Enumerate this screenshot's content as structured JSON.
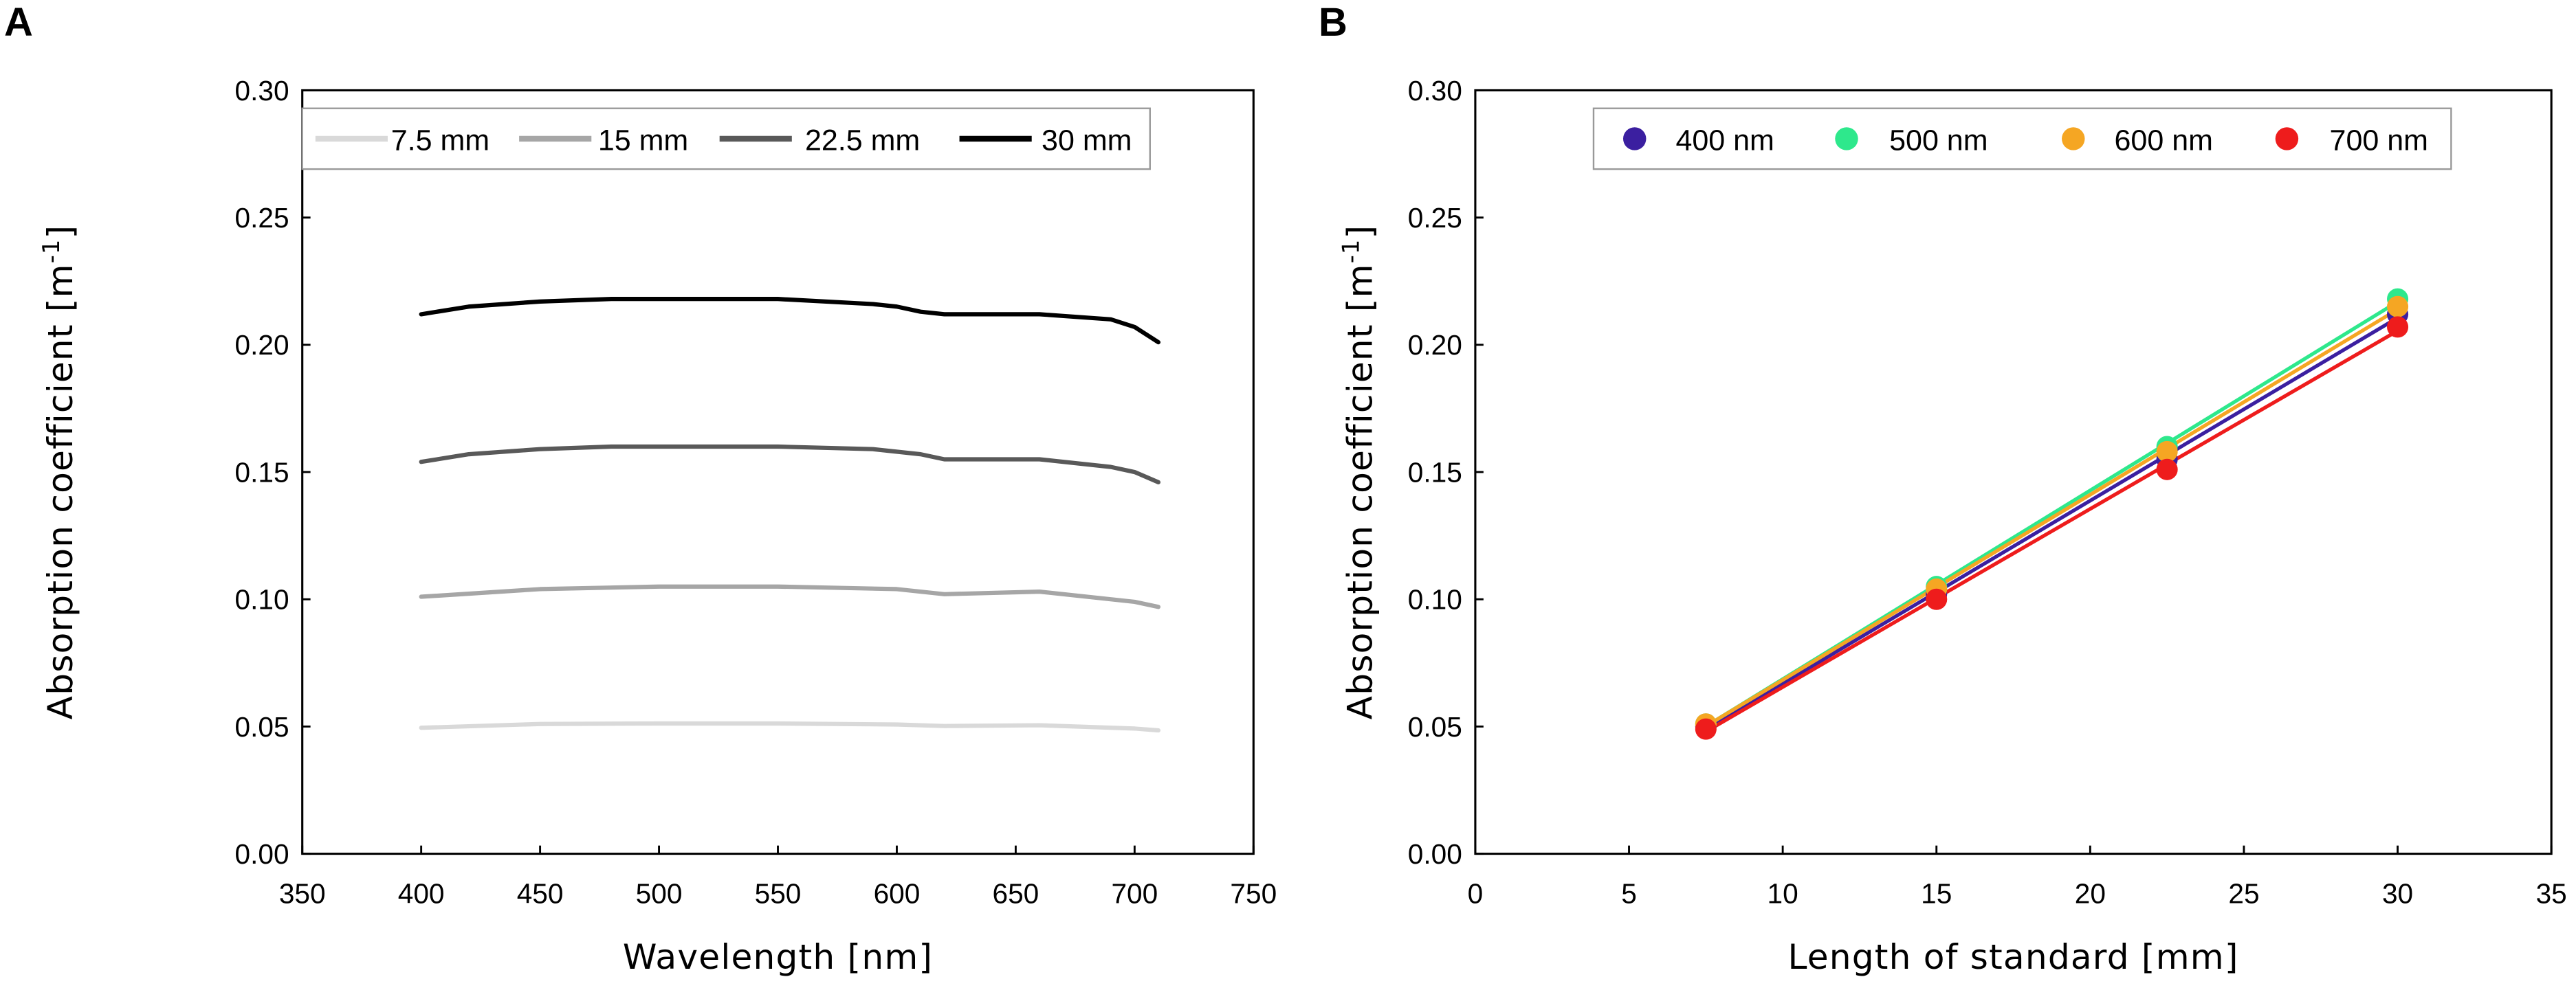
{
  "panels": {
    "a": {
      "label": "A"
    },
    "b": {
      "label": "B"
    }
  },
  "chart_data": [
    {
      "type": "line",
      "panel": "A",
      "title": "",
      "xlabel": "Wavelength [nm]",
      "ylabel": "Absorption coefficient  [m",
      "ylabel_superscript": "-1",
      "ylabel_close": "]",
      "xlim": [
        350,
        750
      ],
      "ylim": [
        0.0,
        0.3
      ],
      "xticks": [
        350,
        400,
        450,
        500,
        550,
        600,
        650,
        700,
        750
      ],
      "yticks": [
        0.0,
        0.05,
        0.1,
        0.15,
        0.2,
        0.25,
        0.3
      ],
      "xtick_labels": [
        "350",
        "400",
        "450",
        "500",
        "550",
        "600",
        "650",
        "700",
        "750"
      ],
      "ytick_labels": [
        "0.00",
        "0.05",
        "0.10",
        "0.15",
        "0.20",
        "0.25",
        "0.30"
      ],
      "legend_position": "top-right",
      "series": [
        {
          "name": "7.5 mm",
          "color": "#d9d9d9",
          "x": [
            400,
            450,
            500,
            550,
            600,
            620,
            660,
            700,
            710
          ],
          "y": [
            0.0495,
            0.051,
            0.0512,
            0.0512,
            0.0508,
            0.0502,
            0.0505,
            0.0492,
            0.0485
          ]
        },
        {
          "name": "15 mm",
          "color": "#a6a6a6",
          "x": [
            400,
            450,
            500,
            550,
            600,
            620,
            660,
            700,
            710
          ],
          "y": [
            0.101,
            0.104,
            0.105,
            0.105,
            0.104,
            0.102,
            0.103,
            0.099,
            0.097
          ]
        },
        {
          "name": "22.5 mm",
          "color": "#595959",
          "x": [
            400,
            420,
            450,
            480,
            500,
            550,
            590,
            610,
            620,
            660,
            690,
            700,
            710
          ],
          "y": [
            0.154,
            0.157,
            0.159,
            0.16,
            0.16,
            0.16,
            0.159,
            0.157,
            0.155,
            0.155,
            0.152,
            0.15,
            0.146
          ]
        },
        {
          "name": "30 mm",
          "color": "#000000",
          "x": [
            400,
            420,
            450,
            480,
            500,
            550,
            590,
            600,
            610,
            620,
            660,
            690,
            700,
            710
          ],
          "y": [
            0.212,
            0.215,
            0.217,
            0.218,
            0.218,
            0.218,
            0.216,
            0.215,
            0.213,
            0.212,
            0.212,
            0.21,
            0.207,
            0.201
          ]
        }
      ]
    },
    {
      "type": "scatter",
      "panel": "B",
      "title": "",
      "xlabel": "Length of standard [mm]",
      "ylabel": "Absorption coefficient  [m",
      "ylabel_superscript": "-1",
      "ylabel_close": "]",
      "xlim": [
        0,
        35
      ],
      "ylim": [
        0.0,
        0.3
      ],
      "xticks": [
        0,
        5,
        10,
        15,
        20,
        25,
        30,
        35
      ],
      "yticks": [
        0.0,
        0.05,
        0.1,
        0.15,
        0.2,
        0.25,
        0.3
      ],
      "xtick_labels": [
        "0",
        "5",
        "10",
        "15",
        "20",
        "25",
        "30",
        "35"
      ],
      "ytick_labels": [
        "0.00",
        "0.05",
        "0.10",
        "0.15",
        "0.20",
        "0.25",
        "0.30"
      ],
      "legend_position": "top-right",
      "fit_lines": true,
      "series": [
        {
          "name": "400 nm",
          "color": "#3b1fa0",
          "x": [
            7.5,
            15,
            22.5,
            30
          ],
          "y": [
            0.05,
            0.102,
            0.155,
            0.212
          ]
        },
        {
          "name": "500 nm",
          "color": "#2ee88c",
          "x": [
            7.5,
            15,
            22.5,
            30
          ],
          "y": [
            0.051,
            0.105,
            0.16,
            0.218
          ]
        },
        {
          "name": "600 nm",
          "color": "#f5a623",
          "x": [
            7.5,
            15,
            22.5,
            30
          ],
          "y": [
            0.051,
            0.104,
            0.158,
            0.215
          ]
        },
        {
          "name": "700 nm",
          "color": "#ee1c1c",
          "x": [
            7.5,
            15,
            22.5,
            30
          ],
          "y": [
            0.049,
            0.1,
            0.151,
            0.207
          ]
        }
      ]
    }
  ]
}
